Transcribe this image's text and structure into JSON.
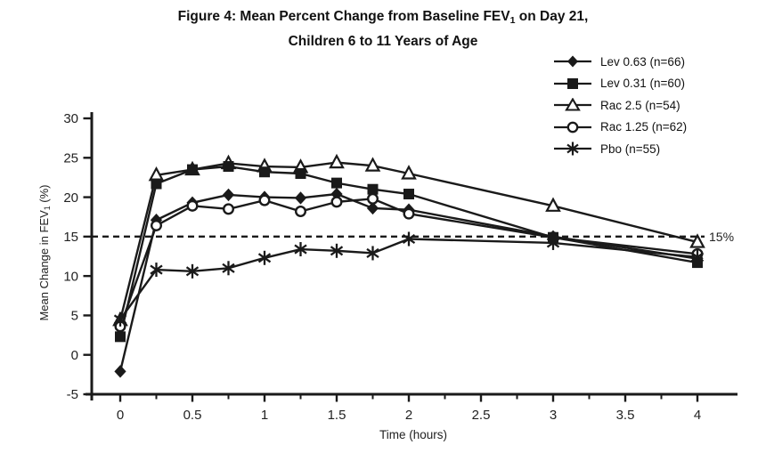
{
  "title": {
    "line1_prefix": "Figure 4: Mean Percent Change from Baseline FEV",
    "line1_sub": "1",
    "line1_suffix": " on Day 21,",
    "line2": "Children 6 to 11 Years of Age"
  },
  "colors": {
    "ink": "#1a1a1a",
    "background": "#ffffff"
  },
  "chart_data": {
    "type": "line",
    "title": "Figure 4: Mean Percent Change from Baseline FEV1 on Day 21, Children 6 to 11 Years of Age",
    "xlabel": "Time (hours)",
    "ylabel_prefix": "Mean Change in FEV",
    "ylabel_sub": "1",
    "ylabel_suffix": " (%)",
    "ylim": [
      -5,
      30
    ],
    "xlim": [
      0,
      4
    ],
    "grid": false,
    "legend_position": "top-right",
    "y_ticks": [
      30,
      25,
      20,
      15,
      10,
      5,
      0,
      -5
    ],
    "x_tick_labels_major": [
      "0",
      "0.5",
      "1",
      "1.5",
      "2",
      "2.5",
      "3",
      "3.5",
      "4"
    ],
    "x_ticks_minor": [
      0.25,
      0.75,
      1.25,
      1.75,
      2.25,
      2.75,
      3.25,
      3.75
    ],
    "reference_line": {
      "y": 15,
      "label": "15%",
      "style": "dashed"
    },
    "x": [
      0,
      0.25,
      0.5,
      0.75,
      1,
      1.25,
      1.5,
      1.75,
      2,
      3,
      4
    ],
    "series": [
      {
        "name": "Lev 0.63 (n=66)",
        "marker": "diamond-filled",
        "values": [
          -2.1,
          17.1,
          19.3,
          20.3,
          20.0,
          19.9,
          20.4,
          18.6,
          18.4,
          15.0,
          12.2
        ]
      },
      {
        "name": "Lev 0.31 (n=60)",
        "marker": "square-filled",
        "values": [
          2.3,
          21.7,
          23.5,
          23.9,
          23.2,
          23.0,
          21.8,
          21.0,
          20.4,
          14.9,
          11.7
        ]
      },
      {
        "name": "Rac 2.5 (n=54)",
        "marker": "triangle-open",
        "values": [
          4.4,
          22.8,
          23.5,
          24.3,
          23.9,
          23.8,
          24.4,
          24.0,
          23.0,
          18.9,
          14.3
        ]
      },
      {
        "name": "Rac 1.25 (n=62)",
        "marker": "circle-open",
        "values": [
          3.6,
          16.4,
          18.9,
          18.5,
          19.6,
          18.2,
          19.4,
          19.8,
          17.9,
          14.9,
          12.8
        ]
      },
      {
        "name": "Pbo (n=55)",
        "marker": "asterisk",
        "values": [
          4.5,
          10.8,
          10.6,
          11.0,
          12.3,
          13.4,
          13.2,
          12.9,
          14.7,
          14.2,
          12.4
        ]
      }
    ]
  }
}
